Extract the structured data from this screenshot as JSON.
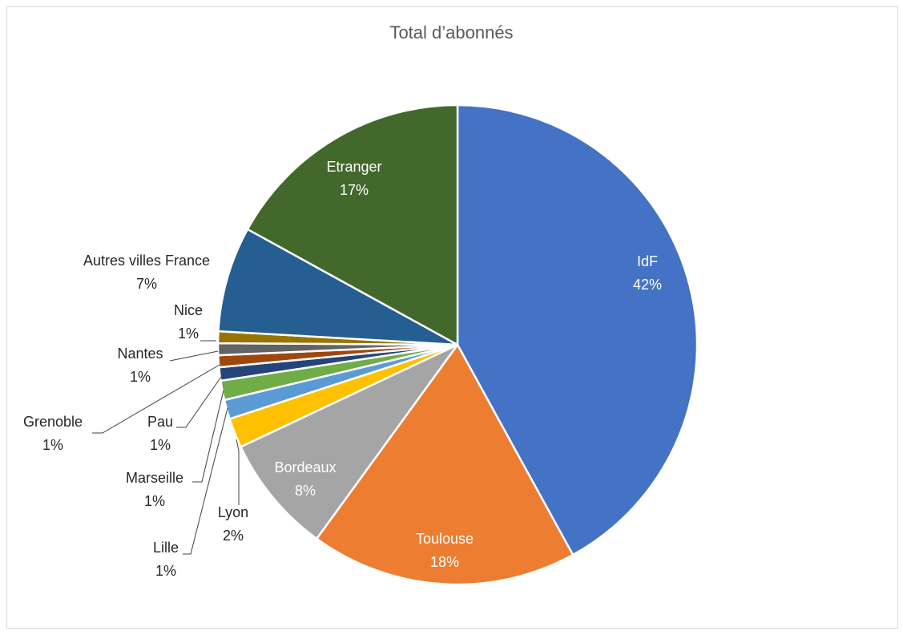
{
  "chart_data": {
    "type": "pie",
    "title": "Total d’abonnés",
    "slices": [
      {
        "name": "IdF",
        "percent": 42.0,
        "label": "42%",
        "color": "#4472C4"
      },
      {
        "name": "Toulouse",
        "percent": 18.0,
        "label": "18%",
        "color": "#ED7D31"
      },
      {
        "name": "Bordeaux",
        "percent": 8.0,
        "label": "8%",
        "color": "#A5A5A5"
      },
      {
        "name": "Lyon",
        "percent": 2.0,
        "label": "2%",
        "color": "#FFC000"
      },
      {
        "name": "Lille",
        "percent": 1.3,
        "label": "1%",
        "color": "#5B9BD5"
      },
      {
        "name": "Marseille",
        "percent": 1.3,
        "label": "1%",
        "color": "#70AD47"
      },
      {
        "name": "Pau",
        "percent": 0.9,
        "label": "1%",
        "color": "#264478"
      },
      {
        "name": "Grenoble",
        "percent": 0.8,
        "label": "1%",
        "color": "#9E480E"
      },
      {
        "name": "Nantes",
        "percent": 0.8,
        "label": "1%",
        "color": "#636363"
      },
      {
        "name": "Nice",
        "percent": 0.8,
        "label": "1%",
        "color": "#997300"
      },
      {
        "name": "Autres villes France",
        "percent": 7.1,
        "label": "7%",
        "color": "#255E91"
      },
      {
        "name": "Etranger",
        "percent": 17.0,
        "label": "17%",
        "color": "#43682B"
      }
    ],
    "legend": "none"
  }
}
